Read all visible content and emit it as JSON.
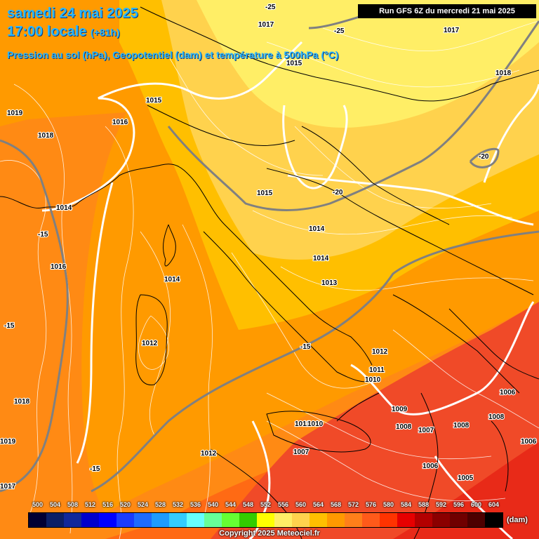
{
  "header": {
    "date": "samedi 24 mai 2025",
    "time": "17:00 locale",
    "lead": "(+81h)",
    "subtitle": "Pression au sol (hPa), Geopotentiel (dam) et température à 500hPa (°C)",
    "run": "Run GFS 6Z du mercredi 21 mai 2025"
  },
  "pressure_labels": [
    "1017",
    "1017",
    "1015",
    "1015",
    "1018",
    "1019",
    "1018",
    "1016",
    "1015",
    "1014",
    "1014",
    "1014",
    "1016",
    "1014",
    "1013",
    "1012",
    "1012",
    "1011",
    "1010",
    "1009",
    "1008",
    "1007",
    "1008",
    "1008",
    "1006",
    "1006",
    "1005",
    "1006",
    "1007",
    "1011",
    "1010",
    "1012",
    "1018",
    "1019",
    "1017"
  ],
  "temperature_labels": [
    "-25",
    "-25",
    "-20",
    "-20",
    "-15",
    "-15",
    "-15",
    "-15"
  ],
  "legend": {
    "ticks": [
      "500",
      "504",
      "508",
      "512",
      "516",
      "520",
      "524",
      "528",
      "532",
      "536",
      "540",
      "544",
      "548",
      "552",
      "556",
      "560",
      "564",
      "568",
      "572",
      "576",
      "580",
      "584",
      "588",
      "592",
      "596",
      "600",
      "604"
    ],
    "colors": [
      "#000033",
      "#0a1f66",
      "#10289a",
      "#0000cc",
      "#0000ff",
      "#1a3cff",
      "#1e6bff",
      "#1e9bff",
      "#33ccff",
      "#66ffff",
      "#66ff99",
      "#66ff33",
      "#33cc00",
      "#ffff00",
      "#ffee66",
      "#ffd24d",
      "#ffbf00",
      "#ff9900",
      "#ff7f1a",
      "#ff5a1a",
      "#ff3300",
      "#e60000",
      "#b30000",
      "#8b0000",
      "#700000",
      "#4d0000",
      "#000000"
    ],
    "unit": "(dam)"
  },
  "copyright": "Copyright 2025 Meteociel.fr",
  "colors": {
    "band_552": "#ffee66",
    "band_556": "#ffd24d",
    "band_560": "#ffbf00",
    "band_564": "#ff9900",
    "band_568": "#ff7f1a",
    "band_572": "#ff5a1a",
    "band_576": "#ff3300",
    "title": "#29b6ff"
  }
}
